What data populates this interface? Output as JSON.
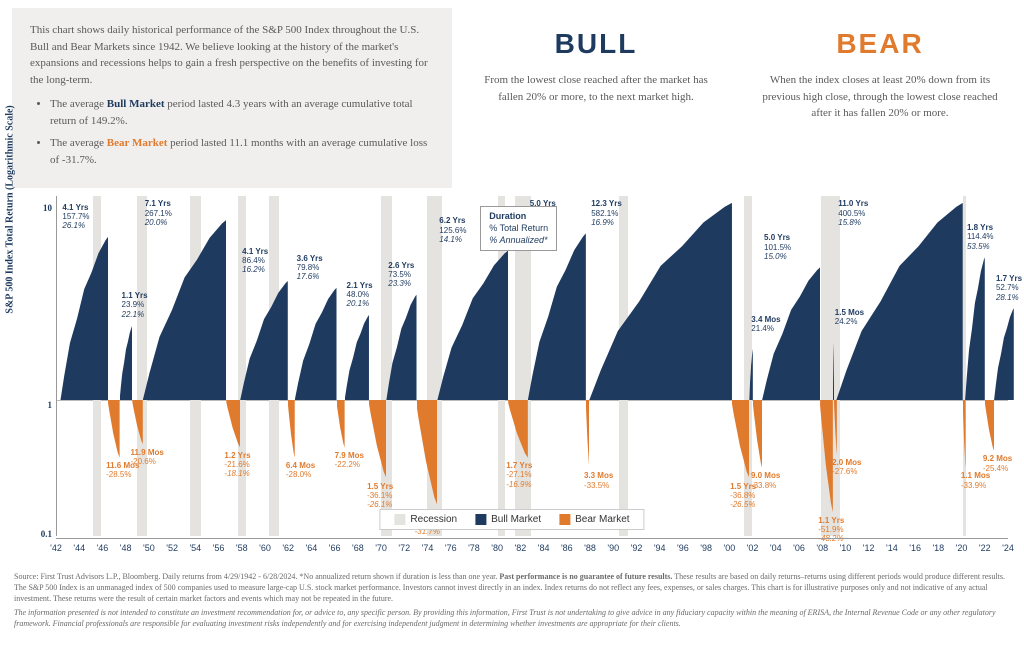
{
  "intro": {
    "paragraph": "This chart shows daily historical performance of the S&P 500 Index throughout the U.S. Bull and Bear Markets since 1942. We believe looking at the history of the market's expansions and recessions helps to gain a fresh perspective on the benefits of investing for the long-term.",
    "bullet1_pre": "The average ",
    "bullet1_bold": "Bull Market",
    "bullet1_post": " period lasted 4.3 years with an average cumulative total return of 149.2%.",
    "bullet2_pre": "The average ",
    "bullet2_bold": "Bear Market",
    "bullet2_post": " period lasted 11.1 months with an average cumulative loss of -31.7%."
  },
  "bull": {
    "title": "BULL",
    "desc": "From the lowest close reached after the market has fallen 20% or more, to the next market high."
  },
  "bear": {
    "title": "BEAR",
    "desc": "When the index closes at least 20% down from its previous high close, through the lowest close reached after it has fallen 20% or more."
  },
  "chart": {
    "y_label": "S&P 500 Index Total Return (Logarithmic Scale)",
    "y_ticks": [
      {
        "label": "10",
        "pct": 2
      },
      {
        "label": "1",
        "pct": 60
      },
      {
        "label": "0.1",
        "pct": 98
      }
    ],
    "baseline_pct": 60,
    "x_range": [
      1942,
      2024
    ],
    "x_ticks": [
      "'42",
      "'44",
      "'46",
      "'48",
      "'50",
      "'52",
      "'54",
      "'56",
      "'58",
      "'60",
      "'62",
      "'64",
      "'66",
      "'68",
      "'70",
      "'72",
      "'74",
      "'76",
      "'78",
      "'80",
      "'82",
      "'84",
      "'86",
      "'88",
      "'90",
      "'92",
      "'94",
      "'96",
      "'98",
      "'00",
      "'02",
      "'04",
      "'06",
      "'08",
      "'10",
      "'12",
      "'14",
      "'16",
      "'18",
      "'20",
      "'22",
      "'24"
    ],
    "colors": {
      "bull": "#1e3a5f",
      "bear": "#e07b2e",
      "recession": "#e5e3df",
      "grid": "#bbbbbb",
      "bg": "#ffffff"
    },
    "recessions": [
      {
        "start": 1945.1,
        "end": 1945.8
      },
      {
        "start": 1948.9,
        "end": 1949.8
      },
      {
        "start": 1953.5,
        "end": 1954.4
      },
      {
        "start": 1957.6,
        "end": 1958.3
      },
      {
        "start": 1960.3,
        "end": 1961.1
      },
      {
        "start": 1969.9,
        "end": 1970.9
      },
      {
        "start": 1973.9,
        "end": 1975.2
      },
      {
        "start": 1980.0,
        "end": 1980.6
      },
      {
        "start": 1981.5,
        "end": 1982.9
      },
      {
        "start": 1990.5,
        "end": 1991.2
      },
      {
        "start": 2001.2,
        "end": 2001.9
      },
      {
        "start": 2007.9,
        "end": 2009.5
      },
      {
        "start": 2020.1,
        "end": 2020.4
      }
    ],
    "bulls": [
      {
        "start": 1942.3,
        "end": 1946.4,
        "peak": 48,
        "dur": "4.1 Yrs",
        "ret": "157.7%",
        "ann": "26.1%"
      },
      {
        "start": 1947.4,
        "end": 1948.5,
        "peak": 22,
        "dur": "1.1 Yrs",
        "ret": "23.9%",
        "ann": "22.1%"
      },
      {
        "start": 1949.4,
        "end": 1956.6,
        "peak": 53,
        "dur": "7.1 Yrs",
        "ret": "267.1%",
        "ann": "20.0%"
      },
      {
        "start": 1957.8,
        "end": 1961.9,
        "peak": 35,
        "dur": "4.1 Yrs",
        "ret": "86.4%",
        "ann": "16.2%"
      },
      {
        "start": 1962.5,
        "end": 1966.1,
        "peak": 33,
        "dur": "3.6 Yrs",
        "ret": "79.8%",
        "ann": "17.6%"
      },
      {
        "start": 1966.8,
        "end": 1968.9,
        "peak": 25,
        "dur": "2.1 Yrs",
        "ret": "48.0%",
        "ann": "20.1%"
      },
      {
        "start": 1970.4,
        "end": 1973.0,
        "peak": 31,
        "dur": "2.6 Yrs",
        "ret": "73.5%",
        "ann": "23.3%"
      },
      {
        "start": 1974.8,
        "end": 1980.9,
        "peak": 44,
        "dur": "6.2 Yrs",
        "ret": "125.6%",
        "ann": "14.1%"
      },
      {
        "start": 1982.6,
        "end": 1987.6,
        "peak": 49,
        "dur": "5.0 Yrs",
        "ret": "228.8%",
        "ann": "26.7%"
      },
      {
        "start": 1987.9,
        "end": 2000.2,
        "peak": 58,
        "dur": "12.3 Yrs",
        "ret": "582.1%",
        "ann": "16.9%"
      },
      {
        "start": 2001.7,
        "end": 2002.0,
        "peak": 15,
        "dur": "3.4 Mos",
        "ret": "21.4%",
        "ann": ""
      },
      {
        "start": 2002.8,
        "end": 2007.8,
        "peak": 39,
        "dur": "5.0 Yrs",
        "ret": "101.5%",
        "ann": "15.0%"
      },
      {
        "start": 2008.9,
        "end": 2009.0,
        "peak": 17,
        "dur": "1.5 Mos",
        "ret": "24.2%",
        "ann": ""
      },
      {
        "start": 2009.2,
        "end": 2020.1,
        "peak": 58,
        "dur": "11.0 Yrs",
        "ret": "400.5%",
        "ann": "15.8%"
      },
      {
        "start": 2020.3,
        "end": 2022.0,
        "peak": 42,
        "dur": "1.8 Yrs",
        "ret": "114.4%",
        "ann": "53.5%"
      },
      {
        "start": 2022.8,
        "end": 2024.5,
        "peak": 27,
        "dur": "1.7 Yrs",
        "ret": "52.7%",
        "ann": "28.1%"
      }
    ],
    "bears": [
      {
        "start": 1946.4,
        "end": 1947.4,
        "depth": 17,
        "dur": "11.6 Mos",
        "ret": "-28.5%",
        "ann": ""
      },
      {
        "start": 1948.5,
        "end": 1949.4,
        "depth": 13,
        "dur": "11.9 Mos",
        "ret": "-20.6%",
        "ann": ""
      },
      {
        "start": 1956.6,
        "end": 1957.8,
        "depth": 14,
        "dur": "1.2 Yrs",
        "ret": "-21.6%",
        "ann": "-18.1%"
      },
      {
        "start": 1961.9,
        "end": 1962.5,
        "depth": 17,
        "dur": "6.4 Mos",
        "ret": "-28.0%",
        "ann": ""
      },
      {
        "start": 1966.1,
        "end": 1966.8,
        "depth": 14,
        "dur": "7.9 Mos",
        "ret": "-22.2%",
        "ann": ""
      },
      {
        "start": 1968.9,
        "end": 1970.4,
        "depth": 23,
        "dur": "1.5 Yrs",
        "ret": "-36.1%",
        "ann": "-26.1%"
      },
      {
        "start": 1973.0,
        "end": 1974.8,
        "depth": 31,
        "dur": "1.7 Yrs",
        "ret": "-48.2%",
        "ann": "-31.7%"
      },
      {
        "start": 1980.9,
        "end": 1982.6,
        "depth": 17,
        "dur": "1.7 Yrs",
        "ret": "-27.1%",
        "ann": "-16.9%"
      },
      {
        "start": 1987.6,
        "end": 1987.9,
        "depth": 20,
        "dur": "3.3 Mos",
        "ret": "-33.5%",
        "ann": ""
      },
      {
        "start": 2000.2,
        "end": 2001.7,
        "depth": 23,
        "dur": "1.5 Yrs",
        "ret": "-36.8%",
        "ann": "-26.5%"
      },
      {
        "start": 2002.0,
        "end": 2002.8,
        "depth": 20,
        "dur": "9.0 Mos",
        "ret": "-33.8%",
        "ann": ""
      },
      {
        "start": 2007.8,
        "end": 2008.9,
        "depth": 33,
        "dur": "1.1 Yrs",
        "ret": "-51.9%",
        "ann": "-48.2%"
      },
      {
        "start": 2009.0,
        "end": 2009.2,
        "depth": 16,
        "dur": "2.0 Mos",
        "ret": "-27.6%",
        "ann": ""
      },
      {
        "start": 2020.1,
        "end": 2020.3,
        "depth": 20,
        "dur": "1.1 Mos",
        "ret": "-33.9%",
        "ann": ""
      },
      {
        "start": 2022.0,
        "end": 2022.8,
        "depth": 15,
        "dur": "9.2 Mos",
        "ret": "-25.4%",
        "ann": ""
      }
    ],
    "duration_key": {
      "l1": "Duration",
      "l2": "% Total Return",
      "l3": "% Annualized*",
      "left_year": 1978.5,
      "top_pct": 3
    },
    "legend": {
      "recession": "Recession",
      "bull": "Bull Market",
      "bear": "Bear Market"
    }
  },
  "footnotes": {
    "fn1_pre": "Source: First Trust Advisors L.P., Bloomberg. Daily returns from 4/29/1942 - 6/28/2024. *No annualized return shown if duration is less than one year. ",
    "fn1_bold": "Past performance is no guarantee of future results.",
    "fn1_post": " These results are based on daily returns–returns using different periods would produce different results. The S&P 500 Index is an unmanaged index of 500 companies used to measure large-cap U.S. stock market performance. Investors cannot invest directly in an index. Index returns do not reflect any fees, expenses, or sales charges. This chart is for illustrative purposes only and not indicative of any actual investment. These returns were the result of certain market factors and events which may not be repeated in the future.",
    "fn2": "The information presented is not intended to constitute an investment recommendation for, or advice to, any specific person. By providing this information, First Trust is not undertaking to give advice in any fiduciary capacity within the meaning of ERISA, the Internal Revenue Code or any other regulatory framework. Financial professionals are responsible for evaluating investment risks independently and for exercising independent judgment in determining whether investments are appropriate for their clients."
  }
}
